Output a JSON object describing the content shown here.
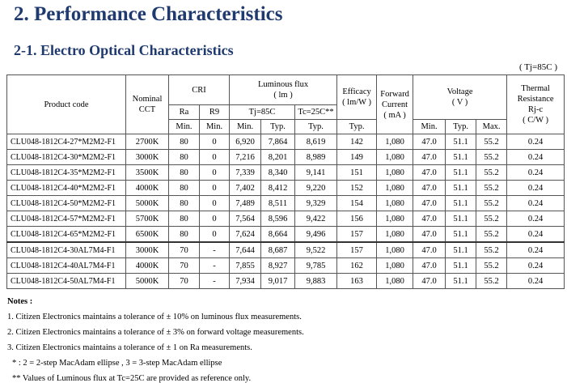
{
  "heading": "2. Performance Characteristics",
  "subheading": "2-1. Electro Optical Characteristics",
  "condition": "( Tj=85C )",
  "table": {
    "header": {
      "product_code": "Product code",
      "nominal_cct": [
        "Nominal",
        "CCT"
      ],
      "cri": "CRI",
      "ra": "Ra",
      "r9": "R9",
      "flux": [
        "Luminous flux",
        "( lm )"
      ],
      "tj": "Tj=85C",
      "tc": "Tc=25C**",
      "efficacy": [
        "Efficacy",
        "( lm/W )"
      ],
      "current": [
        "Forward",
        "Current",
        "( mA )"
      ],
      "voltage": [
        "Voltage",
        "( V )"
      ],
      "thermal": [
        "Thermal",
        "Resistance",
        "Rj-c",
        "( C/W )"
      ],
      "units": [
        "Min.",
        "Min.",
        "Min.",
        "Typ.",
        "Typ.",
        "Typ.",
        "Min.",
        "Typ.",
        "Max."
      ]
    },
    "rows": [
      [
        "CLU048-1812C4-27*M2M2-F1",
        "2700K",
        "80",
        "0",
        "6,920",
        "7,864",
        "8,619",
        "142",
        "1,080",
        "47.0",
        "51.1",
        "55.2",
        "0.24"
      ],
      [
        "CLU048-1812C4-30*M2M2-F1",
        "3000K",
        "80",
        "0",
        "7,216",
        "8,201",
        "8,989",
        "149",
        "1,080",
        "47.0",
        "51.1",
        "55.2",
        "0.24"
      ],
      [
        "CLU048-1812C4-35*M2M2-F1",
        "3500K",
        "80",
        "0",
        "7,339",
        "8,340",
        "9,141",
        "151",
        "1,080",
        "47.0",
        "51.1",
        "55.2",
        "0.24"
      ],
      [
        "CLU048-1812C4-40*M2M2-F1",
        "4000K",
        "80",
        "0",
        "7,402",
        "8,412",
        "9,220",
        "152",
        "1,080",
        "47.0",
        "51.1",
        "55.2",
        "0.24"
      ],
      [
        "CLU048-1812C4-50*M2M2-F1",
        "5000K",
        "80",
        "0",
        "7,489",
        "8,511",
        "9,329",
        "154",
        "1,080",
        "47.0",
        "51.1",
        "55.2",
        "0.24"
      ],
      [
        "CLU048-1812C4-57*M2M2-F1",
        "5700K",
        "80",
        "0",
        "7,564",
        "8,596",
        "9,422",
        "156",
        "1,080",
        "47.0",
        "51.1",
        "55.2",
        "0.24"
      ],
      [
        "CLU048-1812C4-65*M2M2-F1",
        "6500K",
        "80",
        "0",
        "7,624",
        "8,664",
        "9,496",
        "157",
        "1,080",
        "47.0",
        "51.1",
        "55.2",
        "0.24"
      ],
      [
        "CLU048-1812C4-30AL7M4-F1",
        "3000K",
        "70",
        "-",
        "7,644",
        "8,687",
        "9,522",
        "157",
        "1,080",
        "47.0",
        "51.1",
        "55.2",
        "0.24"
      ],
      [
        "CLU048-1812C4-40AL7M4-F1",
        "4000K",
        "70",
        "-",
        "7,855",
        "8,927",
        "9,785",
        "162",
        "1,080",
        "47.0",
        "51.1",
        "55.2",
        "0.24"
      ],
      [
        "CLU048-1812C4-50AL7M4-F1",
        "5000K",
        "70",
        "-",
        "7,934",
        "9,017",
        "9,883",
        "163",
        "1,080",
        "47.0",
        "51.1",
        "55.2",
        "0.24"
      ]
    ]
  },
  "notes": {
    "title": "Notes :",
    "items": [
      "1. Citizen Electronics maintains a tolerance of ± 10% on luminous flux measurements.",
      "2. Citizen Electronics maintains a tolerance of ± 3% on forward voltage measurements.",
      "3. Citizen Electronics maintains a tolerance of ± 1 on Ra measurements.",
      "* : 2 = 2-step MacAdam ellipse , 3 = 3-step MacAdam ellipse",
      "** Values of Luminous flux at Tc=25C are provided as reference only."
    ]
  }
}
